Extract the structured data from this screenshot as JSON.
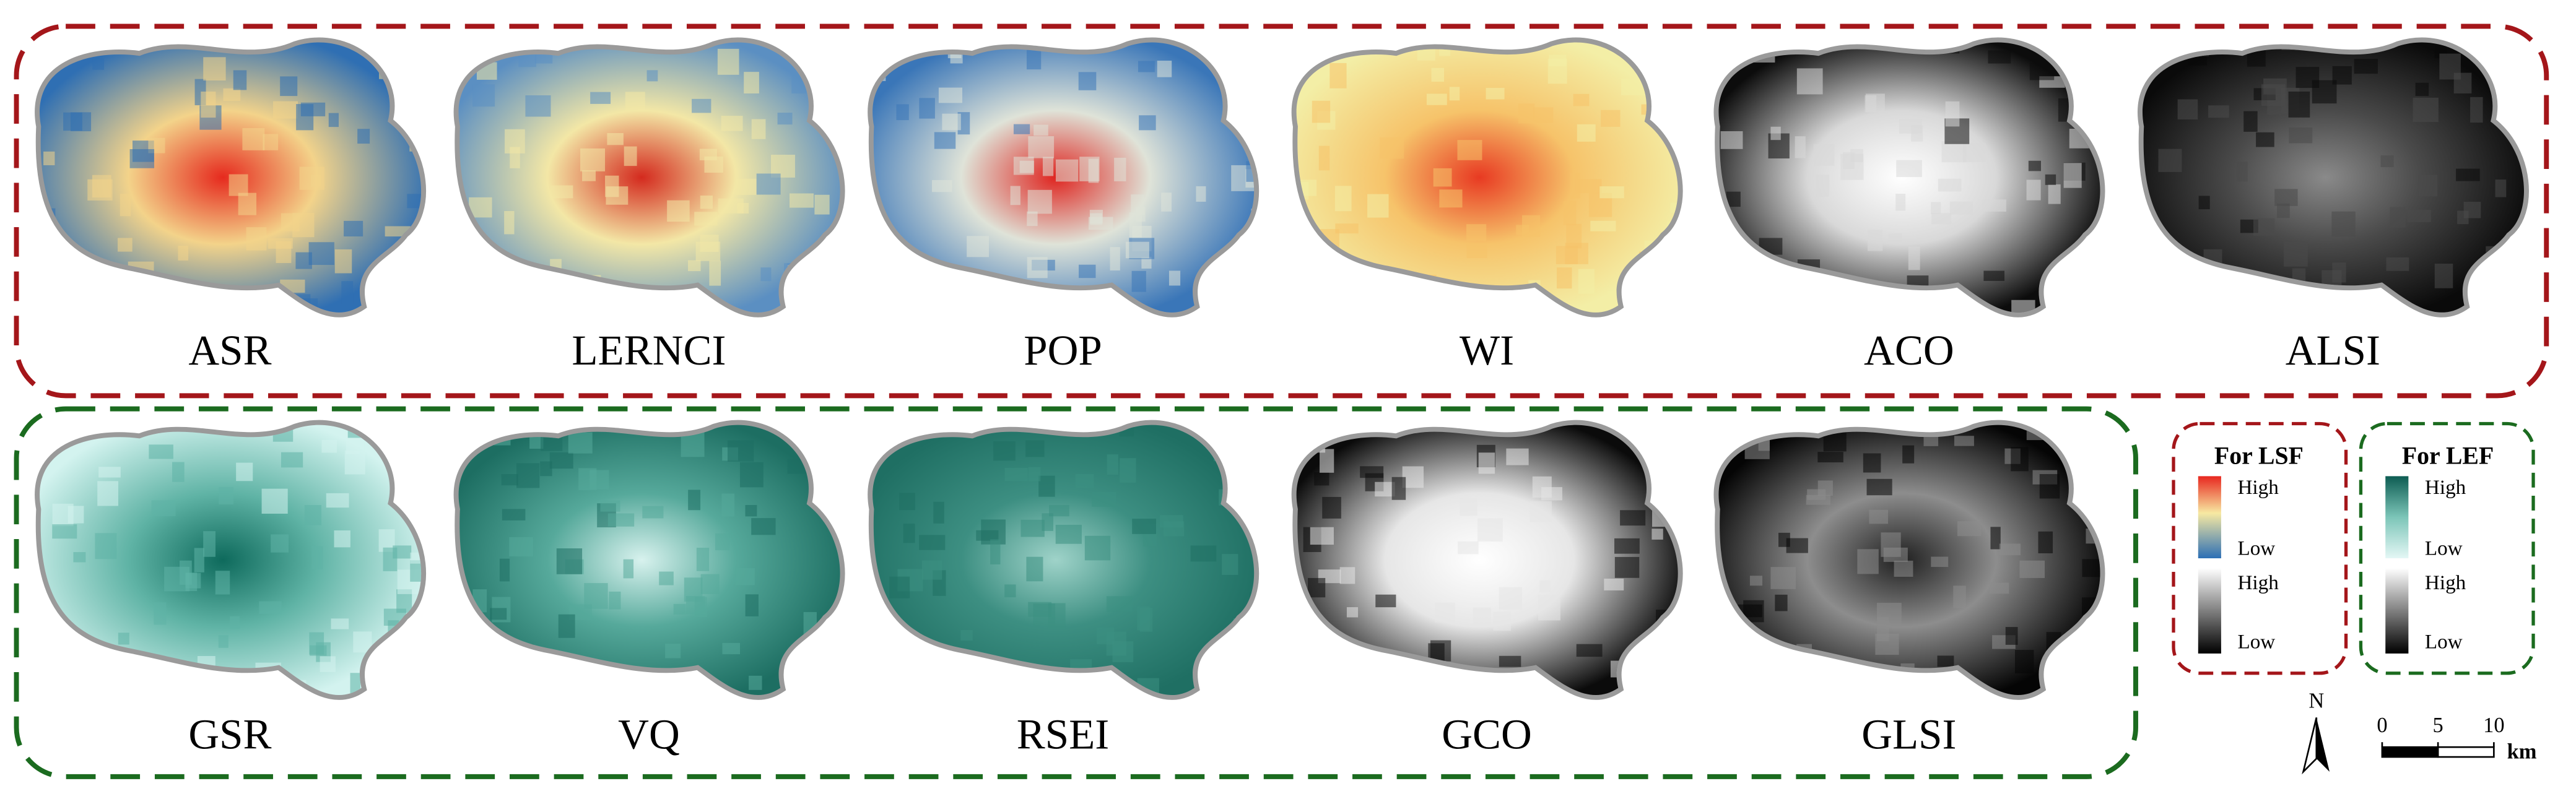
{
  "panels_top": [
    {
      "label": "ASR"
    },
    {
      "label": "LERNCI"
    },
    {
      "label": "POP"
    },
    {
      "label": "WI"
    },
    {
      "label": "ACO"
    },
    {
      "label": "ALSI"
    }
  ],
  "panels_bottom": [
    {
      "label": "GSR"
    },
    {
      "label": "VQ"
    },
    {
      "label": "RSEI"
    },
    {
      "label": "GCO"
    },
    {
      "label": "GLSI"
    }
  ],
  "legend_lsf": {
    "title": "For LSF",
    "color_high": "High",
    "color_low": "Low",
    "gray_high": "High",
    "gray_low": "Low"
  },
  "legend_lef": {
    "title": "For LEF",
    "color_high": "High",
    "color_low": "Low",
    "gray_high": "High",
    "gray_low": "Low"
  },
  "north_arrow": "N",
  "scale_bar": {
    "ticks": [
      0,
      5,
      10
    ],
    "unit": "km"
  }
}
